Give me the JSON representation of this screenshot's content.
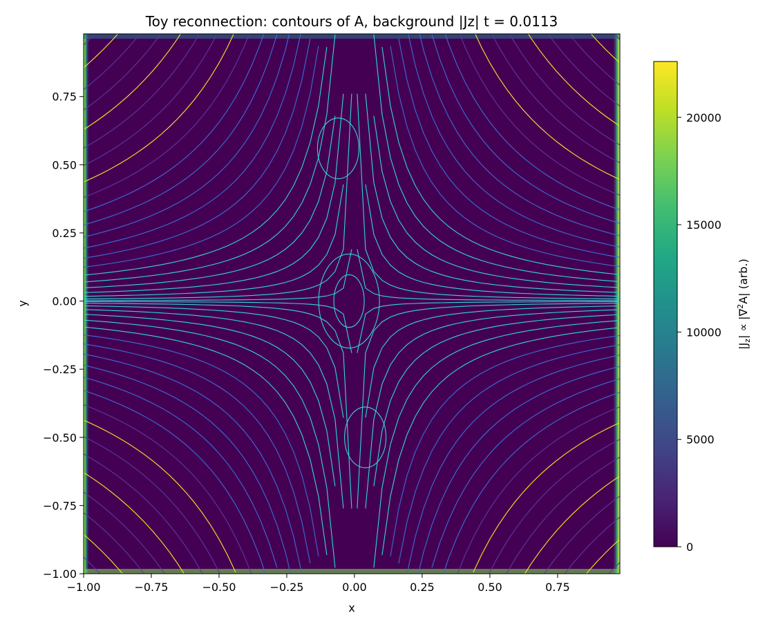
{
  "chart_data": {
    "type": "heatmap",
    "title": "Toy reconnection: contours of A, background |Jz|   t = 0.0113",
    "xlabel": "x",
    "ylabel": "y",
    "xlim": [
      -1.0,
      0.98
    ],
    "ylim": [
      -1.0,
      0.98
    ],
    "x_ticks": [
      -1.0,
      -0.75,
      -0.5,
      -0.25,
      0.0,
      0.25,
      0.5,
      0.75
    ],
    "x_tick_labels": [
      "−1.00",
      "−0.75",
      "−0.50",
      "−0.25",
      "0.00",
      "0.25",
      "0.50",
      "0.75"
    ],
    "y_ticks": [
      -1.0,
      -0.75,
      -0.5,
      -0.25,
      0.0,
      0.25,
      0.5,
      0.75
    ],
    "y_tick_labels": [
      "−1.00",
      "−0.75",
      "−0.50",
      "−0.25",
      "0.00",
      "0.25",
      "0.50",
      "0.75"
    ],
    "colorbar": {
      "label": "|J_z| ∝ |∇²A| (arb.)",
      "label_parts": {
        "prefix": "|J",
        "sub": "z",
        "middle": "| ∝ |∇",
        "sup": "2",
        "suffix": "A| (arb.)"
      },
      "range": [
        0,
        22600
      ],
      "ticks": [
        0,
        5000,
        10000,
        15000,
        20000
      ],
      "tick_labels": [
        "0",
        "5000",
        "10000",
        "15000",
        "20000"
      ],
      "colormap": "viridis",
      "levels": 20
    },
    "background_field": "|Jz| near zero (dark purple) throughout interior; high values (green to yellow) along left and right boundary edges and near corners",
    "contours": {
      "field": "A",
      "style": "thin lines colored by A value (cyan, blue, purple, yellow)",
      "o_points": [
        {
          "x": -0.02,
          "y": 0.0
        },
        {
          "x": -0.06,
          "y": 0.56
        },
        {
          "x": 0.04,
          "y": -0.5
        }
      ],
      "x_point": {
        "x": 0.0,
        "y": 0.0
      }
    },
    "grid": false,
    "legend": "none",
    "colors": {
      "background_min": "#440154",
      "contour_cyan": "#35d7d2",
      "contour_blue": "#3b6fcf",
      "contour_purple": "#5b3a9a",
      "contour_yellow": "#fde725"
    }
  }
}
